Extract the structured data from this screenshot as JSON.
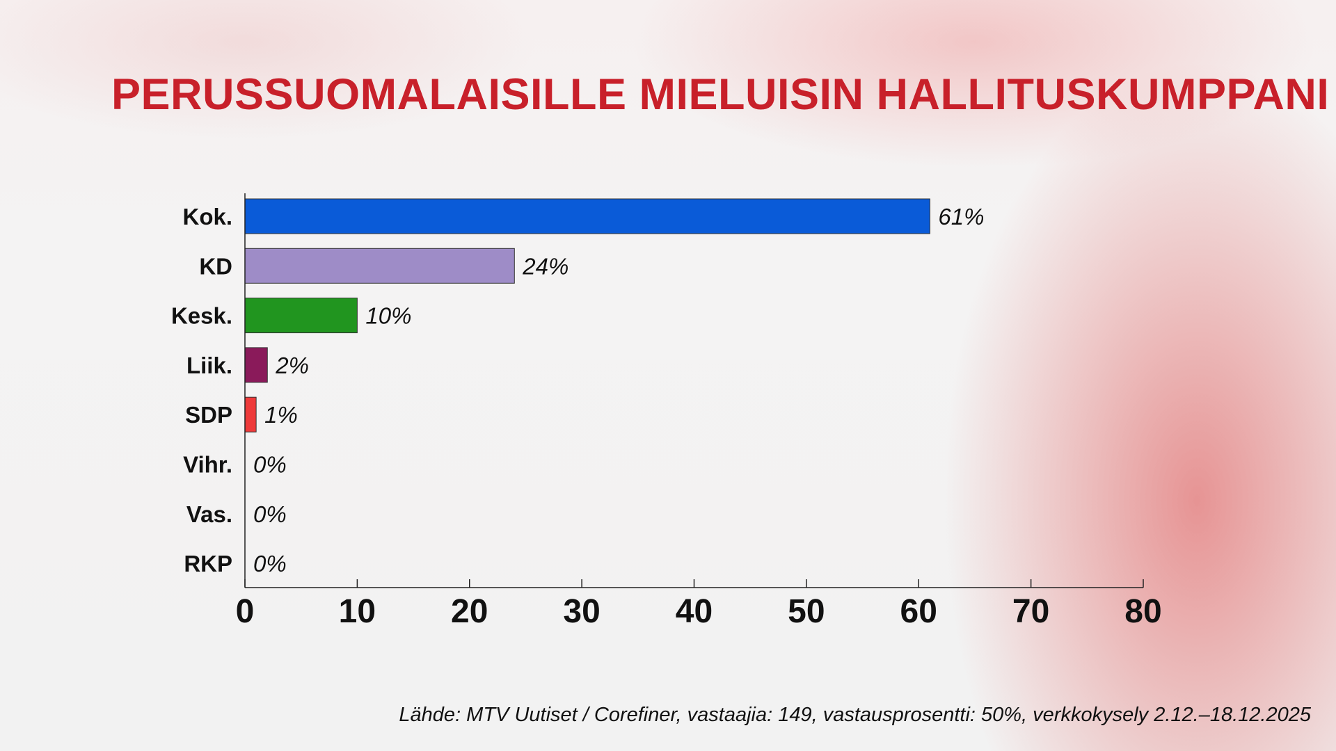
{
  "chart_data": {
    "type": "bar",
    "orientation": "horizontal",
    "title": "PERUSSUOMALAISILLE MIELUISIN HALLITUSKUMPPANI",
    "categories": [
      "Kok.",
      "KD",
      "Kesk.",
      "Liik.",
      "SDP",
      "Vihr.",
      "Vas.",
      "RKP"
    ],
    "values": [
      61,
      24,
      10,
      2,
      1,
      0,
      0,
      0
    ],
    "value_labels": [
      "61%",
      "24%",
      "10%",
      "2%",
      "1%",
      "0%",
      "0%",
      "0%"
    ],
    "colors": [
      "#0a5bd8",
      "#9e8cc7",
      "#21951f",
      "#8a1a5a",
      "#ee3a3a",
      "#cccccc",
      "#cccccc",
      "#cccccc"
    ],
    "xlim": [
      0,
      80
    ],
    "xticks": [
      0,
      10,
      20,
      30,
      40,
      50,
      60,
      70,
      80
    ],
    "xtick_labels": [
      "0",
      "10",
      "20",
      "30",
      "40",
      "50",
      "60",
      "70",
      "80"
    ],
    "xlabel": "",
    "ylabel": "",
    "grid": false,
    "legend": "none",
    "source": "Lähde: MTV Uutiset / Corefiner, vastaajia: 149, vastausprosentti: 50%, verkkokysely 2.12.–18.12.2025"
  },
  "colors": {
    "title": "#c8202a",
    "axis": "#222222",
    "bar_stroke": "#333333"
  }
}
